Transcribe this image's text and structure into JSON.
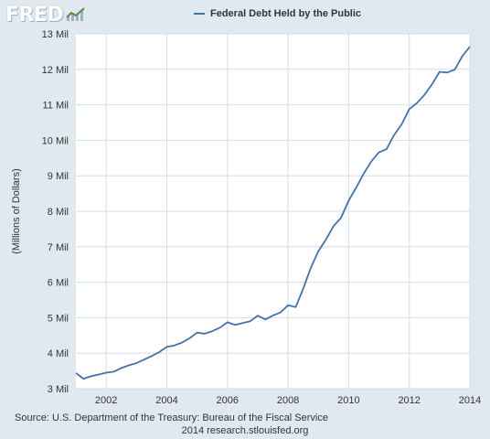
{
  "logo": {
    "text": "FRED",
    "icon": "line-chart-icon"
  },
  "colors": {
    "background": "#e1e9f0",
    "plot": "#ffffff",
    "grid": "#d8dee5",
    "series": "#4572a7"
  },
  "source": {
    "line1": "Source: U.S. Department of the Treasury: Bureau of the Fiscal Service",
    "line2": "2014 research.stlouisfed.org"
  },
  "chart_data": {
    "type": "line",
    "title": "",
    "legend": "top-center",
    "grid": true,
    "xlabel": "",
    "ylabel": "(Millions of Dollars)",
    "xlim": [
      2001.0,
      2014.0
    ],
    "ylim": [
      3,
      13
    ],
    "x_ticks": [
      "2002",
      "2004",
      "2006",
      "2008",
      "2010",
      "2012",
      "2014"
    ],
    "y_ticks": [
      "3 Mil",
      "4 Mil",
      "5 Mil",
      "6 Mil",
      "7 Mil",
      "8 Mil",
      "9 Mil",
      "10 Mil",
      "11 Mil",
      "12 Mil",
      "13 Mil"
    ],
    "series": [
      {
        "name": "Federal Debt Held by the Public",
        "x": [
          2001.0,
          2001.25,
          2001.5,
          2001.75,
          2002.0,
          2002.25,
          2002.5,
          2002.75,
          2003.0,
          2003.25,
          2003.5,
          2003.75,
          2004.0,
          2004.25,
          2004.5,
          2004.75,
          2005.0,
          2005.25,
          2005.5,
          2005.75,
          2006.0,
          2006.25,
          2006.5,
          2006.75,
          2007.0,
          2007.25,
          2007.5,
          2007.75,
          2008.0,
          2008.25,
          2008.5,
          2008.75,
          2009.0,
          2009.25,
          2009.5,
          2009.75,
          2010.0,
          2010.25,
          2010.5,
          2010.75,
          2011.0,
          2011.25,
          2011.5,
          2011.75,
          2012.0,
          2012.25,
          2012.5,
          2012.75,
          2013.0,
          2013.25,
          2013.5,
          2013.75,
          2014.0
        ],
        "y": [
          3.44,
          3.28,
          3.35,
          3.4,
          3.45,
          3.48,
          3.58,
          3.66,
          3.72,
          3.82,
          3.92,
          4.03,
          4.18,
          4.22,
          4.3,
          4.42,
          4.58,
          4.55,
          4.62,
          4.72,
          4.87,
          4.8,
          4.85,
          4.9,
          5.06,
          4.95,
          5.06,
          5.15,
          5.35,
          5.3,
          5.82,
          6.4,
          6.87,
          7.2,
          7.58,
          7.82,
          8.3,
          8.67,
          9.07,
          9.41,
          9.66,
          9.75,
          10.15,
          10.45,
          10.88,
          11.05,
          11.28,
          11.58,
          11.93,
          11.91,
          11.99,
          12.37,
          12.64
        ]
      }
    ]
  }
}
